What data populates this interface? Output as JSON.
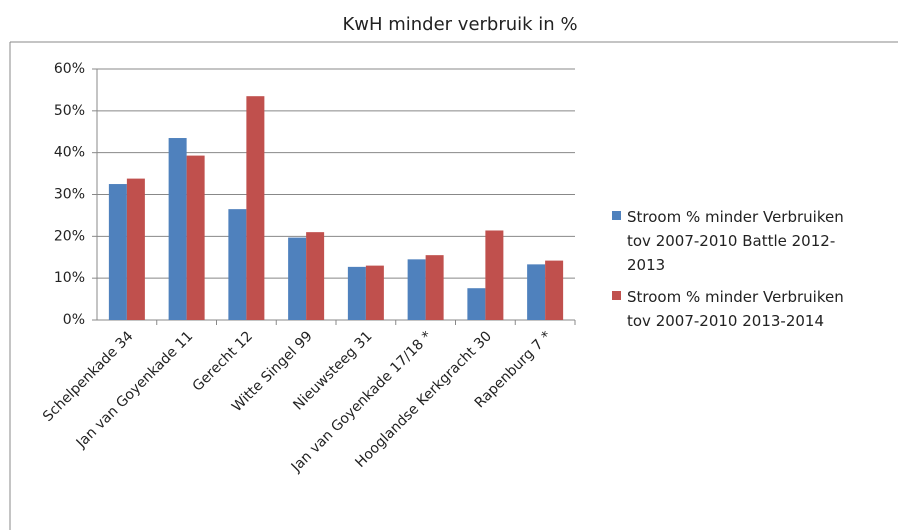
{
  "chart_data": {
    "type": "bar",
    "title": "KwH minder verbruik in %",
    "categories": [
      "Schelpenkade 34",
      "Jan van Goyenkade 11",
      "Gerecht 12",
      "Witte Singel 99",
      "Nieuwsteeg 31",
      "Jan van Goyenkade 17/18 *",
      "Hooglandse Kerkgracht 30",
      "Rapenburg 7 *"
    ],
    "series": [
      {
        "name": "Stroom % minder Verbruiken tov 2007-2010 Battle 2012-2013",
        "color": "#4f81bd",
        "values": [
          32.5,
          43.5,
          26.5,
          19.7,
          12.7,
          14.5,
          7.6,
          13.3
        ]
      },
      {
        "name": "Stroom % minder Verbruiken tov 2007-2010 2013-2014",
        "color": "#c0504d",
        "values": [
          33.8,
          39.3,
          53.5,
          21.0,
          13.0,
          15.5,
          21.4,
          14.2
        ]
      }
    ],
    "ylim": [
      0,
      60
    ],
    "yticks": [
      {
        "value": 0,
        "label": "0%"
      },
      {
        "value": 10,
        "label": "10%"
      },
      {
        "value": 20,
        "label": "20%"
      },
      {
        "value": 30,
        "label": "30%"
      },
      {
        "value": 40,
        "label": "40%"
      },
      {
        "value": 50,
        "label": "50%"
      },
      {
        "value": 60,
        "label": "60%"
      }
    ],
    "grid": true,
    "legend": "right"
  }
}
